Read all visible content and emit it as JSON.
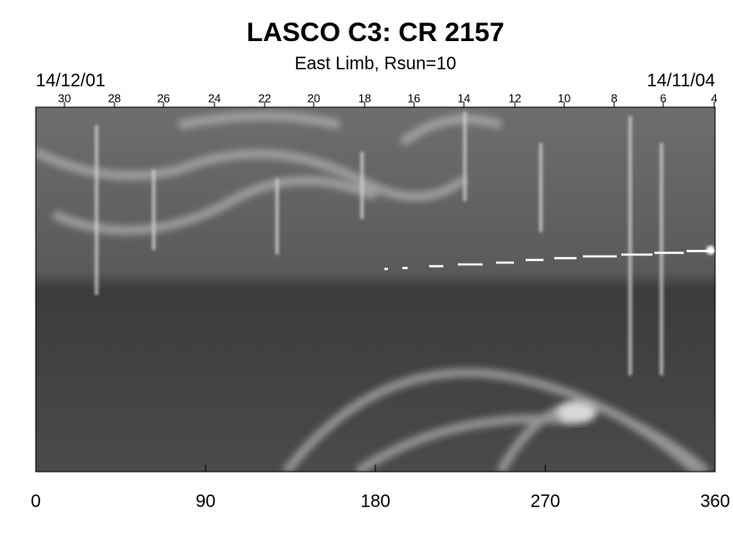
{
  "chart_data": {
    "type": "image",
    "title": "LASCO C3: CR 2157",
    "subtitle": "East Limb, Rsun=10",
    "start_label": "14/12/01",
    "end_label": "14/11/04",
    "xlim": [
      0,
      360
    ],
    "xticks": [
      0,
      90,
      180,
      270,
      360
    ],
    "x2ticks": [
      {
        "value": 15.2,
        "label": "30"
      },
      {
        "value": 41.7,
        "label": "28"
      },
      {
        "value": 67.7,
        "label": "26"
      },
      {
        "value": 94.7,
        "label": "24"
      },
      {
        "value": 121.3,
        "label": "22"
      },
      {
        "value": 147.3,
        "label": "20"
      },
      {
        "value": 174.3,
        "label": "18"
      },
      {
        "value": 200.4,
        "label": "16"
      },
      {
        "value": 226.9,
        "label": "14"
      },
      {
        "value": 253.9,
        "label": "12"
      },
      {
        "value": 280.0,
        "label": "10"
      },
      {
        "value": 306.5,
        "label": "8"
      },
      {
        "value": 332.5,
        "label": "6"
      },
      {
        "value": 359.5,
        "label": "4"
      }
    ]
  }
}
